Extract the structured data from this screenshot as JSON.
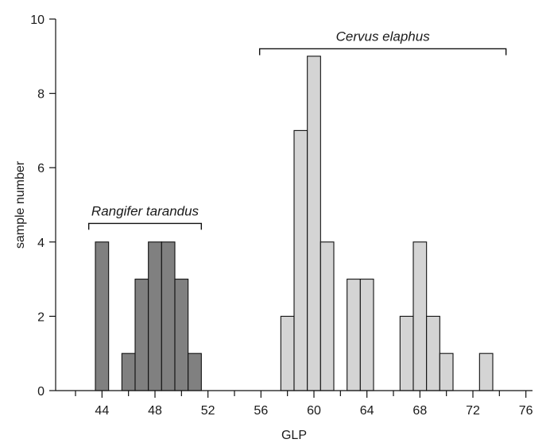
{
  "chart_data": {
    "type": "bar",
    "xlabel": "GLP",
    "ylabel": "sample number",
    "xlim": [
      40.5,
      76.5
    ],
    "ylim": [
      0,
      10
    ],
    "x_ticks": [
      44,
      48,
      52,
      56,
      60,
      64,
      68,
      72,
      76
    ],
    "y_ticks": [
      0,
      2,
      4,
      6,
      8,
      10
    ],
    "bin_width": 1,
    "series": [
      {
        "name": "Rangifer tarandus",
        "color": "#808080",
        "bins": [
          {
            "x": 44,
            "value": 4
          },
          {
            "x": 46,
            "value": 1
          },
          {
            "x": 47,
            "value": 3
          },
          {
            "x": 48,
            "value": 4
          },
          {
            "x": 49,
            "value": 4
          },
          {
            "x": 50,
            "value": 3
          },
          {
            "x": 51,
            "value": 1
          }
        ]
      },
      {
        "name": "Cervus elaphus",
        "color": "#d4d4d4",
        "bins": [
          {
            "x": 58,
            "value": 2
          },
          {
            "x": 59,
            "value": 7
          },
          {
            "x": 60,
            "value": 9
          },
          {
            "x": 61,
            "value": 4
          },
          {
            "x": 63,
            "value": 3
          },
          {
            "x": 64,
            "value": 3
          },
          {
            "x": 67,
            "value": 2
          },
          {
            "x": 68,
            "value": 4
          },
          {
            "x": 69,
            "value": 2
          },
          {
            "x": 70,
            "value": 1
          },
          {
            "x": 73,
            "value": 1
          }
        ]
      }
    ],
    "annotations": [
      {
        "text": "Rangifer tarandus",
        "series": "Rangifer tarandus",
        "range": [
          43,
          51.5
        ],
        "level": 4.5
      },
      {
        "text": "Cervus elaphus",
        "series": "Cervus elaphus",
        "range": [
          55.9,
          74.5
        ],
        "level": 9.2
      }
    ]
  }
}
